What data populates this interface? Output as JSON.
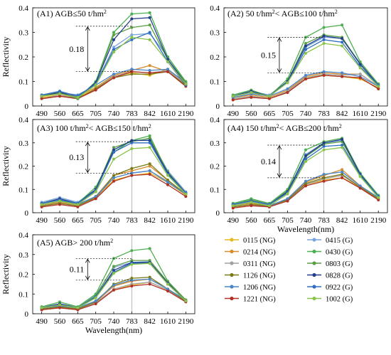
{
  "figure": {
    "legend_items": [
      {
        "label": "0115 (NG)",
        "color": "#e8b820"
      },
      {
        "label": "0214 (NG)",
        "color": "#d98c2a"
      },
      {
        "label": "0311 (NG)",
        "color": "#a0a0a0"
      },
      {
        "label": "1126 (NG)",
        "color": "#7a7a18"
      },
      {
        "label": "1206 (NG)",
        "color": "#4a86c8"
      },
      {
        "label": "1221 (NG)",
        "color": "#b23024"
      },
      {
        "label": "0415 (G)",
        "color": "#7aa4e0"
      },
      {
        "label": "0430 (G)",
        "color": "#4caf50"
      },
      {
        "label": "0803 (G)",
        "color": "#5a9e44"
      },
      {
        "label": "0828 (G)",
        "color": "#243e8a"
      },
      {
        "label": "0922 (G)",
        "color": "#2e6ec0"
      },
      {
        "label": "1002 (G)",
        "color": "#8bc34a"
      }
    ]
  },
  "chart_data": [
    {
      "type": "line",
      "title": "(A1) AGB≤50 t/hm²",
      "xlabel": "",
      "ylabel": "Reflectivity",
      "categories": [
        "490",
        "560",
        "665",
        "705",
        "740",
        "783",
        "842",
        "1610",
        "2190"
      ],
      "yticks": [
        "0",
        "0.1",
        "0.2",
        "0.3",
        "0.4"
      ],
      "ylim": [
        0,
        0.4
      ],
      "annotation": {
        "text": "0.18",
        "from": 0.14,
        "to": 0.325
      },
      "series": [
        {
          "values": [
            0.035,
            0.045,
            0.035,
            0.07,
            0.12,
            0.135,
            0.125,
            0.15,
            0.09
          ]
        },
        {
          "values": [
            0.04,
            0.05,
            0.04,
            0.075,
            0.125,
            0.145,
            0.165,
            0.14,
            0.085
          ]
        },
        {
          "values": [
            0.03,
            0.045,
            0.03,
            0.07,
            0.12,
            0.14,
            0.135,
            0.145,
            0.09
          ]
        },
        {
          "values": [
            0.03,
            0.04,
            0.03,
            0.07,
            0.115,
            0.13,
            0.13,
            0.14,
            0.085
          ]
        },
        {
          "values": [
            0.04,
            0.055,
            0.045,
            0.085,
            0.13,
            0.15,
            0.145,
            0.15,
            0.095
          ]
        },
        {
          "values": [
            0.03,
            0.04,
            0.03,
            0.065,
            0.115,
            0.14,
            0.135,
            0.14,
            0.08
          ]
        },
        {
          "values": [
            0.045,
            0.06,
            0.04,
            0.09,
            0.24,
            0.29,
            0.295,
            0.2,
            0.095
          ]
        },
        {
          "values": [
            0.04,
            0.055,
            0.03,
            0.1,
            0.3,
            0.375,
            0.38,
            0.2,
            0.1
          ]
        },
        {
          "values": [
            0.04,
            0.06,
            0.03,
            0.095,
            0.29,
            0.32,
            0.33,
            0.19,
            0.095
          ]
        },
        {
          "values": [
            0.04,
            0.055,
            0.035,
            0.095,
            0.27,
            0.355,
            0.36,
            0.19,
            0.09
          ]
        },
        {
          "values": [
            0.045,
            0.06,
            0.04,
            0.09,
            0.23,
            0.27,
            0.3,
            0.18,
            0.085
          ]
        },
        {
          "values": [
            0.04,
            0.05,
            0.035,
            0.085,
            0.22,
            0.28,
            0.27,
            0.18,
            0.09
          ]
        }
      ]
    },
    {
      "type": "line",
      "title": "(A2) 50 t/hm²< AGB≤100 t/hm²",
      "xlabel": "",
      "ylabel": "",
      "categories": [
        "490",
        "560",
        "665",
        "705",
        "740",
        "783",
        "842",
        "1610",
        "2190"
      ],
      "yticks": [
        "0",
        "0.1",
        "0.2",
        "0.3",
        "0.4"
      ],
      "ylim": [
        0,
        0.4
      ],
      "annotation": {
        "text": "0.15",
        "from": 0.135,
        "to": 0.28
      },
      "series": [
        {
          "values": [
            0.03,
            0.04,
            0.03,
            0.06,
            0.115,
            0.125,
            0.12,
            0.11,
            0.075
          ]
        },
        {
          "values": [
            0.035,
            0.045,
            0.035,
            0.065,
            0.12,
            0.135,
            0.13,
            0.13,
            0.08
          ]
        },
        {
          "values": [
            0.03,
            0.04,
            0.03,
            0.06,
            0.115,
            0.13,
            0.125,
            0.13,
            0.08
          ]
        },
        {
          "values": [
            0.025,
            0.035,
            0.03,
            0.055,
            0.11,
            0.125,
            0.12,
            0.115,
            0.07
          ]
        },
        {
          "values": [
            0.035,
            0.05,
            0.04,
            0.07,
            0.125,
            0.14,
            0.135,
            0.12,
            0.08
          ]
        },
        {
          "values": [
            0.025,
            0.035,
            0.03,
            0.055,
            0.11,
            0.125,
            0.12,
            0.115,
            0.07
          ]
        },
        {
          "values": [
            0.045,
            0.06,
            0.045,
            0.1,
            0.24,
            0.28,
            0.275,
            0.175,
            0.09
          ]
        },
        {
          "values": [
            0.045,
            0.065,
            0.04,
            0.11,
            0.28,
            0.32,
            0.33,
            0.18,
            0.09
          ]
        },
        {
          "values": [
            0.04,
            0.06,
            0.04,
            0.1,
            0.255,
            0.29,
            0.28,
            0.17,
            0.085
          ]
        },
        {
          "values": [
            0.04,
            0.06,
            0.04,
            0.1,
            0.245,
            0.285,
            0.275,
            0.17,
            0.085
          ]
        },
        {
          "values": [
            0.04,
            0.055,
            0.04,
            0.095,
            0.23,
            0.27,
            0.26,
            0.16,
            0.085
          ]
        },
        {
          "values": [
            0.04,
            0.055,
            0.04,
            0.095,
            0.215,
            0.255,
            0.245,
            0.155,
            0.08
          ]
        }
      ]
    },
    {
      "type": "line",
      "title": "(A3) 100 t/hm²< AGB≤150 t/hm²",
      "xlabel": "",
      "ylabel": "Reflectivity",
      "categories": [
        "490",
        "560",
        "665",
        "705",
        "740",
        "783",
        "842",
        "1610",
        "2190"
      ],
      "yticks": [
        "0",
        "0.1",
        "0.2",
        "0.3",
        "0.4"
      ],
      "ylim": [
        0,
        0.4
      ],
      "annotation": {
        "text": "0.13",
        "from": 0.17,
        "to": 0.305
      },
      "series": [
        {
          "values": [
            0.03,
            0.04,
            0.03,
            0.065,
            0.14,
            0.16,
            0.17,
            0.13,
            0.075
          ]
        },
        {
          "values": [
            0.035,
            0.045,
            0.035,
            0.07,
            0.16,
            0.18,
            0.2,
            0.14,
            0.08
          ]
        },
        {
          "values": [
            0.03,
            0.04,
            0.03,
            0.065,
            0.15,
            0.17,
            0.18,
            0.135,
            0.08
          ]
        },
        {
          "values": [
            0.03,
            0.04,
            0.03,
            0.065,
            0.16,
            0.19,
            0.21,
            0.14,
            0.08
          ]
        },
        {
          "values": [
            0.035,
            0.05,
            0.035,
            0.07,
            0.15,
            0.17,
            0.18,
            0.13,
            0.08
          ]
        },
        {
          "values": [
            0.025,
            0.035,
            0.025,
            0.06,
            0.135,
            0.16,
            0.165,
            0.12,
            0.07
          ]
        },
        {
          "values": [
            0.045,
            0.065,
            0.045,
            0.1,
            0.27,
            0.31,
            0.315,
            0.18,
            0.09
          ]
        },
        {
          "values": [
            0.04,
            0.06,
            0.04,
            0.11,
            0.26,
            0.31,
            0.33,
            0.17,
            0.085
          ]
        },
        {
          "values": [
            0.04,
            0.055,
            0.035,
            0.1,
            0.28,
            0.305,
            0.32,
            0.175,
            0.085
          ]
        },
        {
          "values": [
            0.04,
            0.06,
            0.04,
            0.1,
            0.27,
            0.31,
            0.31,
            0.17,
            0.085
          ]
        },
        {
          "values": [
            0.04,
            0.055,
            0.04,
            0.095,
            0.26,
            0.3,
            0.3,
            0.165,
            0.085
          ]
        },
        {
          "values": [
            0.035,
            0.05,
            0.035,
            0.09,
            0.23,
            0.275,
            0.28,
            0.16,
            0.08
          ]
        }
      ]
    },
    {
      "type": "line",
      "title": "(A4) 150 t/hm²< AGB≤200 t/hm²",
      "xlabel": "Wavelength(nm)",
      "ylabel": "",
      "categories": [
        "490",
        "560",
        "665",
        "705",
        "740",
        "783",
        "842",
        "1610",
        "2190"
      ],
      "yticks": [
        "0",
        "0.1",
        "0.2",
        "0.3",
        "0.4"
      ],
      "ylim": [
        0,
        0.4
      ],
      "annotation": {
        "text": "0.14",
        "from": 0.15,
        "to": 0.29
      },
      "series": [
        {
          "values": [
            0.025,
            0.035,
            0.025,
            0.055,
            0.12,
            0.14,
            0.15,
            0.11,
            0.06
          ]
        },
        {
          "values": [
            0.03,
            0.04,
            0.03,
            0.06,
            0.13,
            0.16,
            0.185,
            0.115,
            0.065
          ]
        },
        {
          "values": [
            0.025,
            0.035,
            0.025,
            0.055,
            0.12,
            0.145,
            0.16,
            0.11,
            0.06
          ]
        },
        {
          "values": [
            0.025,
            0.035,
            0.03,
            0.055,
            0.125,
            0.15,
            0.165,
            0.11,
            0.06
          ]
        },
        {
          "values": [
            0.03,
            0.045,
            0.03,
            0.06,
            0.135,
            0.165,
            0.175,
            0.115,
            0.065
          ]
        },
        {
          "values": [
            0.02,
            0.03,
            0.025,
            0.05,
            0.115,
            0.135,
            0.15,
            0.105,
            0.055
          ]
        },
        {
          "values": [
            0.04,
            0.055,
            0.04,
            0.09,
            0.25,
            0.3,
            0.31,
            0.17,
            0.075
          ]
        },
        {
          "values": [
            0.04,
            0.06,
            0.04,
            0.1,
            0.27,
            0.305,
            0.32,
            0.17,
            0.075
          ]
        },
        {
          "values": [
            0.035,
            0.055,
            0.035,
            0.095,
            0.24,
            0.295,
            0.305,
            0.165,
            0.07
          ]
        },
        {
          "values": [
            0.035,
            0.05,
            0.035,
            0.09,
            0.245,
            0.3,
            0.315,
            0.165,
            0.07
          ]
        },
        {
          "values": [
            0.035,
            0.05,
            0.035,
            0.085,
            0.23,
            0.285,
            0.29,
            0.16,
            0.07
          ]
        },
        {
          "values": [
            0.03,
            0.045,
            0.03,
            0.08,
            0.22,
            0.27,
            0.28,
            0.155,
            0.065
          ]
        }
      ]
    },
    {
      "type": "line",
      "title": "(A5) AGB> 200 t/hm²",
      "xlabel": "Wavelength(nm)",
      "ylabel": "Reflectivity",
      "categories": [
        "490",
        "560",
        "665",
        "705",
        "740",
        "783",
        "842",
        "1610",
        "2190"
      ],
      "yticks": [
        "0",
        "0.1",
        "0.2",
        "0.3",
        "0.4"
      ],
      "ylim": [
        0,
        0.4
      ],
      "annotation": {
        "text": "0.11",
        "from": 0.17,
        "to": 0.28
      },
      "series": [
        {
          "values": [
            0.02,
            0.03,
            0.02,
            0.055,
            0.12,
            0.145,
            0.16,
            0.12,
            0.065
          ]
        },
        {
          "values": [
            0.025,
            0.035,
            0.025,
            0.06,
            0.14,
            0.165,
            0.175,
            0.125,
            0.065
          ]
        },
        {
          "values": [
            0.02,
            0.03,
            0.02,
            0.055,
            0.125,
            0.15,
            0.16,
            0.12,
            0.065
          ]
        },
        {
          "values": [
            0.025,
            0.035,
            0.025,
            0.06,
            0.15,
            0.18,
            0.185,
            0.125,
            0.065
          ]
        },
        {
          "values": [
            0.03,
            0.04,
            0.03,
            0.065,
            0.145,
            0.17,
            0.175,
            0.125,
            0.07
          ]
        },
        {
          "values": [
            0.02,
            0.03,
            0.02,
            0.05,
            0.12,
            0.14,
            0.15,
            0.115,
            0.06
          ]
        },
        {
          "values": [
            0.035,
            0.05,
            0.035,
            0.095,
            0.235,
            0.26,
            0.265,
            0.16,
            0.07
          ]
        },
        {
          "values": [
            0.035,
            0.06,
            0.035,
            0.1,
            0.28,
            0.32,
            0.33,
            0.165,
            0.07
          ]
        },
        {
          "values": [
            0.03,
            0.05,
            0.03,
            0.09,
            0.24,
            0.27,
            0.27,
            0.16,
            0.07
          ]
        },
        {
          "values": [
            0.03,
            0.05,
            0.03,
            0.085,
            0.22,
            0.26,
            0.26,
            0.155,
            0.065
          ]
        },
        {
          "values": [
            0.03,
            0.045,
            0.03,
            0.085,
            0.21,
            0.255,
            0.255,
            0.15,
            0.065
          ]
        },
        {
          "values": [
            0.03,
            0.045,
            0.03,
            0.08,
            0.205,
            0.25,
            0.255,
            0.15,
            0.065
          ]
        }
      ]
    }
  ]
}
